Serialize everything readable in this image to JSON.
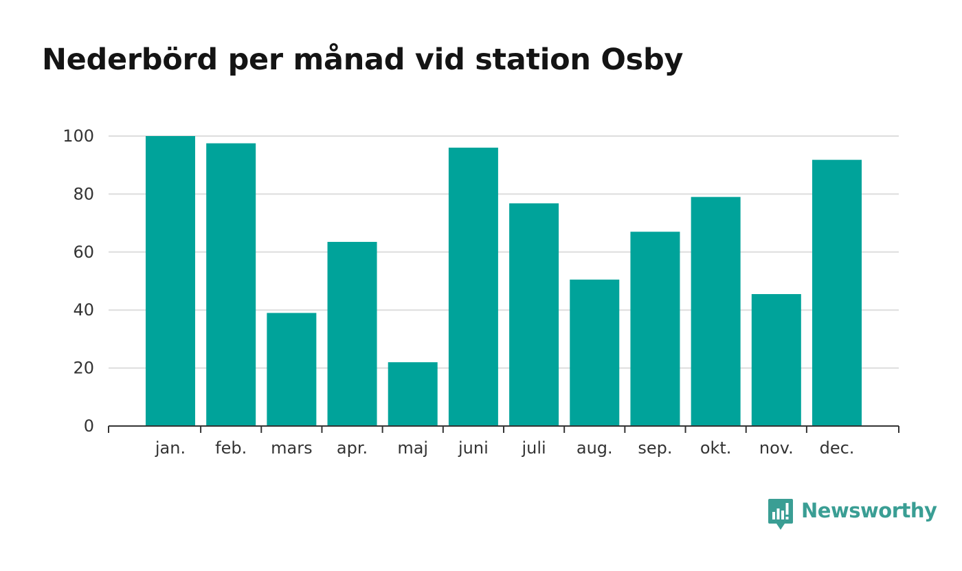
{
  "chart_data": {
    "type": "bar",
    "title": "Nederbörd per månad vid station Osby",
    "categories": [
      "jan.",
      "feb.",
      "mars",
      "apr.",
      "maj",
      "juni",
      "juli",
      "aug.",
      "sep.",
      "okt.",
      "nov.",
      "dec."
    ],
    "values": [
      100,
      97.5,
      39,
      63.5,
      22,
      96,
      76.8,
      50.5,
      67,
      79,
      45.5,
      91.8
    ],
    "xlabel": "",
    "ylabel": "",
    "ylim": [
      0,
      100
    ],
    "yticks": [
      0,
      20,
      40,
      60,
      80,
      100
    ],
    "grid": true,
    "bar_color": "#00a39a",
    "gridline_color": "#dddddd",
    "axis_color": "#333333"
  },
  "brand": {
    "name": "Newsworthy",
    "icon": "newsworthy-logo-icon",
    "color": "#3a9e94"
  }
}
